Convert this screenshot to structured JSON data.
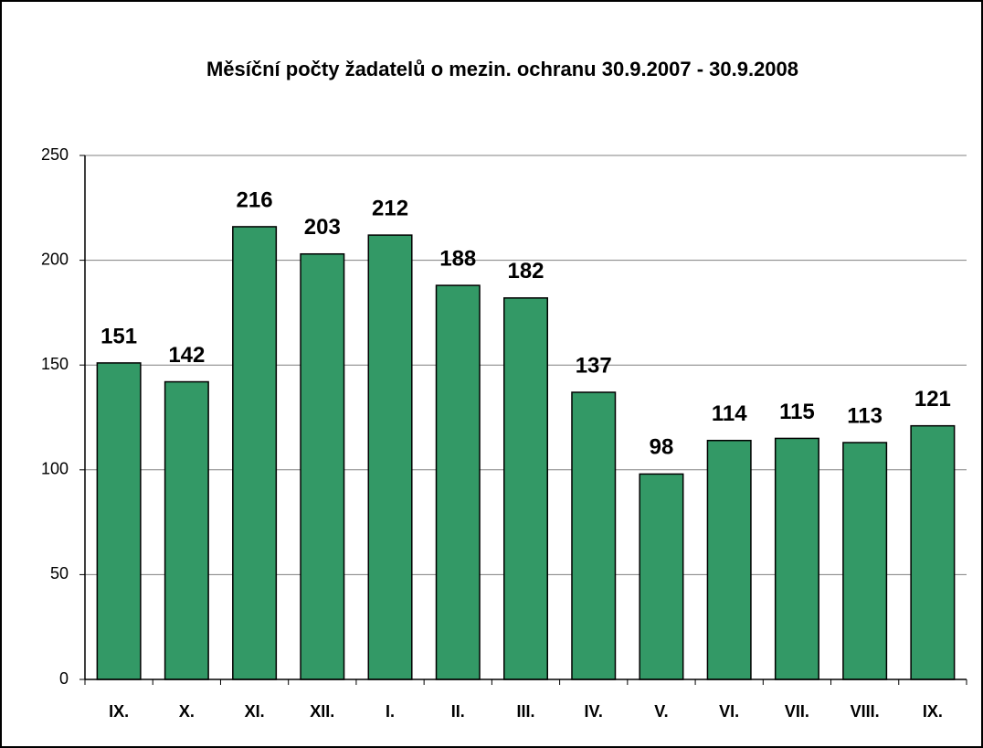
{
  "chart_data": {
    "type": "bar",
    "title": "Měsíční počty žadatelů o mezin. ochranu 30.9.2007 - 30.9.2008",
    "categories": [
      "IX.",
      "X.",
      "XI.",
      "XII.",
      "I.",
      "II.",
      "III.",
      "IV.",
      "V.",
      "VI.",
      "VII.",
      "VIII.",
      "IX."
    ],
    "values": [
      151,
      142,
      216,
      203,
      212,
      188,
      182,
      137,
      98,
      114,
      115,
      113,
      121
    ],
    "color": "#339966",
    "ylim": [
      0,
      250
    ],
    "yticks": [
      0,
      50,
      100,
      150,
      200,
      250
    ],
    "grid": true
  }
}
